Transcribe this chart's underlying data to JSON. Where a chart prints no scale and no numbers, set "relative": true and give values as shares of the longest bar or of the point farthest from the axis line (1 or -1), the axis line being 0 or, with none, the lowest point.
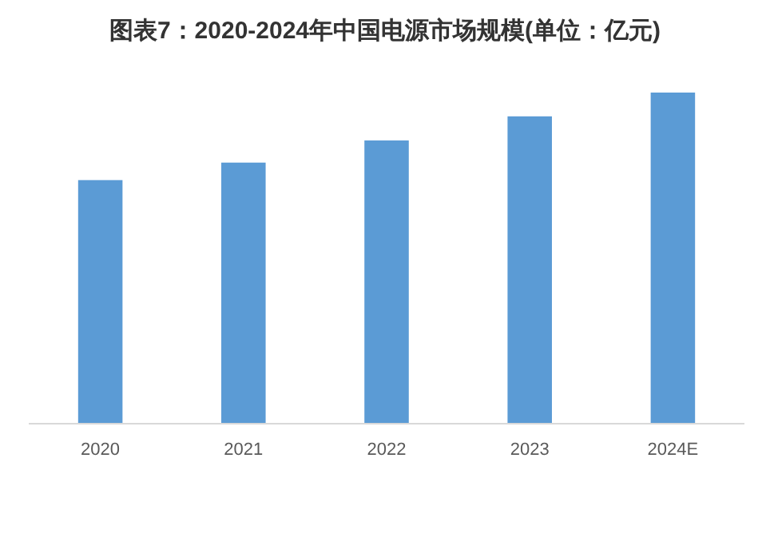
{
  "chart_data": {
    "type": "bar",
    "title": "图表7：2020-2024年中国电源市场规模(单位：亿元)",
    "categories": [
      "2020",
      "2021",
      "2022",
      "2023",
      "2024E"
    ],
    "values": [
      0.735,
      0.788,
      0.855,
      0.928,
      1
    ],
    "color": "#5b9bd5",
    "relative": true
  }
}
